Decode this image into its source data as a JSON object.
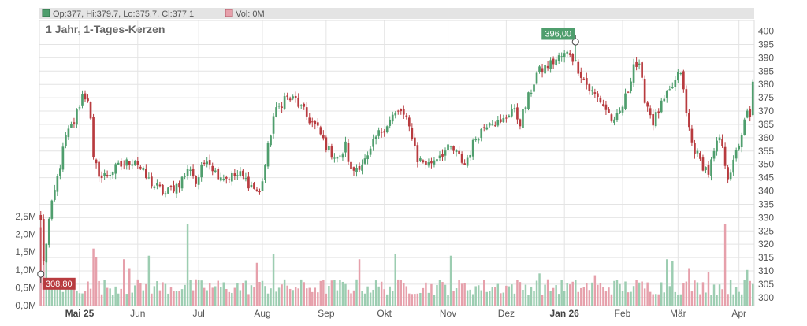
{
  "infobar": {
    "ohlc_text": "Op:377, Hi:379.7, Lo:375.7, Cl:377.1",
    "vol_text": "Vol: 0M"
  },
  "chart_data": {
    "type": "candlestick",
    "title": "1 Jahr, 1-Tages-Kerzen",
    "x_ticks": [
      {
        "label": "Mai 25",
        "index": 14,
        "bold": true
      },
      {
        "label": "Jun",
        "index": 35,
        "bold": false
      },
      {
        "label": "Jul",
        "index": 57,
        "bold": false
      },
      {
        "label": "Aug",
        "index": 80,
        "bold": false
      },
      {
        "label": "Sep",
        "index": 103,
        "bold": false
      },
      {
        "label": "Okt",
        "index": 124,
        "bold": false
      },
      {
        "label": "Nov",
        "index": 147,
        "bold": false
      },
      {
        "label": "Dez",
        "index": 168,
        "bold": false
      },
      {
        "label": "Jan 26",
        "index": 189,
        "bold": true
      },
      {
        "label": "Feb",
        "index": 210,
        "bold": false
      },
      {
        "label": "Mär",
        "index": 230,
        "bold": false
      },
      {
        "label": "Apr",
        "index": 252,
        "bold": false
      }
    ],
    "price_axis": {
      "min": 297,
      "max": 404,
      "ticks": [
        300,
        305,
        310,
        315,
        320,
        325,
        330,
        335,
        340,
        345,
        350,
        355,
        360,
        365,
        370,
        375,
        380,
        385,
        390,
        395,
        400
      ]
    },
    "volume_axis": {
      "min": 0,
      "max": 2.5,
      "ticks": [
        {
          "v": 0,
          "label": "0,0M"
        },
        {
          "v": 0.5,
          "label": "0,5M"
        },
        {
          "v": 1.0,
          "label": "1,0M"
        },
        {
          "v": 1.5,
          "label": "1,5M"
        },
        {
          "v": 2.0,
          "label": "2,0M"
        },
        {
          "v": 2.5,
          "label": "2,5M"
        }
      ]
    },
    "price_keypoints": [
      [
        0,
        329
      ],
      [
        1,
        313
      ],
      [
        3,
        329
      ],
      [
        6,
        345
      ],
      [
        9,
        360
      ],
      [
        12,
        366
      ],
      [
        15,
        376
      ],
      [
        17,
        375
      ],
      [
        18,
        366
      ],
      [
        19,
        351
      ],
      [
        22,
        345
      ],
      [
        28,
        349
      ],
      [
        34,
        352
      ],
      [
        38,
        345
      ],
      [
        41,
        342
      ],
      [
        45,
        339
      ],
      [
        50,
        343
      ],
      [
        54,
        349
      ],
      [
        56,
        343
      ],
      [
        60,
        353
      ],
      [
        63,
        347
      ],
      [
        67,
        345
      ],
      [
        72,
        346
      ],
      [
        76,
        342
      ],
      [
        79,
        339
      ],
      [
        81,
        350
      ],
      [
        84,
        368
      ],
      [
        88,
        375
      ],
      [
        92,
        374
      ],
      [
        96,
        368
      ],
      [
        100,
        363
      ],
      [
        104,
        355
      ],
      [
        108,
        352
      ],
      [
        110,
        357
      ],
      [
        112,
        347
      ],
      [
        115,
        350
      ],
      [
        118,
        352
      ],
      [
        121,
        360
      ],
      [
        124,
        364
      ],
      [
        127,
        368
      ],
      [
        130,
        370
      ],
      [
        132,
        366
      ],
      [
        134,
        361
      ],
      [
        136,
        352
      ],
      [
        140,
        350
      ],
      [
        144,
        354
      ],
      [
        148,
        356
      ],
      [
        150,
        354
      ],
      [
        153,
        350
      ],
      [
        157,
        360
      ],
      [
        162,
        367
      ],
      [
        166,
        365
      ],
      [
        170,
        371
      ],
      [
        173,
        366
      ],
      [
        176,
        375
      ],
      [
        179,
        384
      ],
      [
        183,
        387
      ],
      [
        187,
        390
      ],
      [
        191,
        392
      ],
      [
        194,
        386
      ],
      [
        198,
        378
      ],
      [
        202,
        374
      ],
      [
        205,
        369
      ],
      [
        207,
        365
      ],
      [
        210,
        372
      ],
      [
        212,
        378
      ],
      [
        214,
        388
      ],
      [
        216,
        386
      ],
      [
        218,
        375
      ],
      [
        221,
        366
      ],
      [
        224,
        372
      ],
      [
        227,
        377
      ],
      [
        229,
        381
      ],
      [
        231,
        385
      ],
      [
        233,
        369
      ],
      [
        235,
        358
      ],
      [
        238,
        351
      ],
      [
        241,
        347
      ],
      [
        243,
        354
      ],
      [
        245,
        360
      ],
      [
        248,
        346
      ],
      [
        250,
        350
      ],
      [
        252,
        358
      ],
      [
        255,
        369
      ],
      [
        256,
        367
      ],
      [
        257,
        381
      ]
    ],
    "markers": {
      "high": {
        "label": "396,00",
        "index": 193,
        "value": 396.0
      },
      "low": {
        "label": "308,80",
        "index": 0,
        "value": 308.8
      }
    },
    "colors": {
      "up": "#4f9e6d",
      "down": "#b83b3f",
      "vol_up": "#9ccdb1",
      "vol_down": "#e6a0ab",
      "grid": "#e4e4e4",
      "infobar_bg": "#e4e4e4"
    }
  }
}
